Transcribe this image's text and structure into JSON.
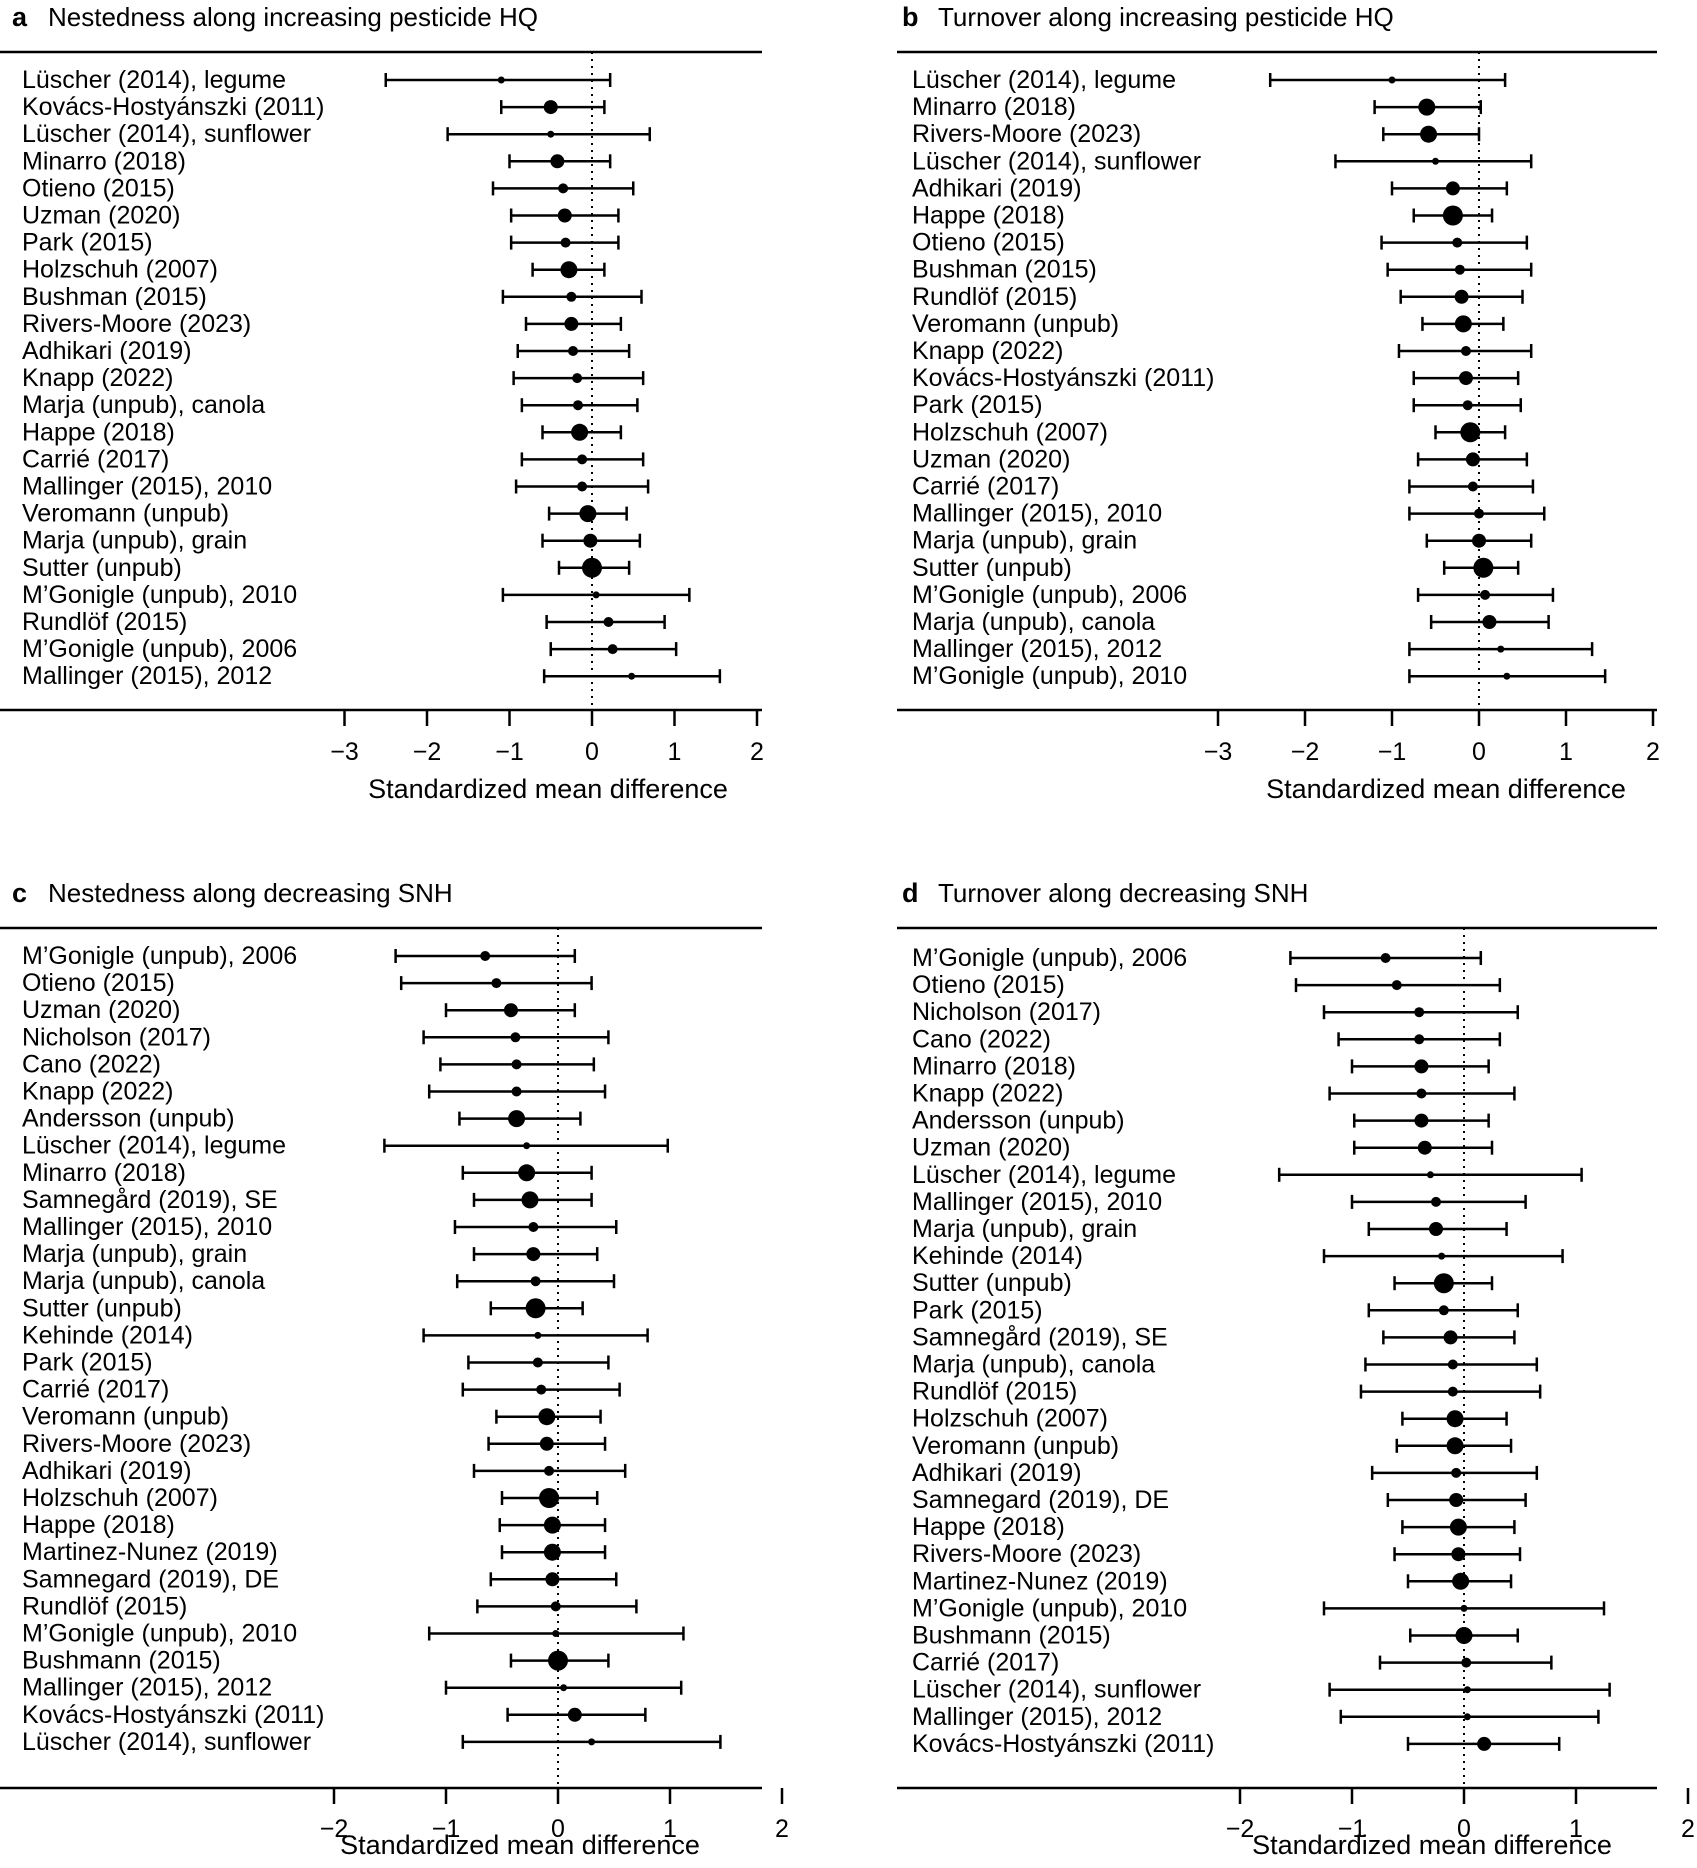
{
  "chart_data": [
    {
      "type": "forest",
      "panel": "a",
      "title": "Nestedness along increasing pesticide HQ",
      "xlabel": "Standardized mean difference",
      "xlim": [
        -3,
        2
      ],
      "ticks": [
        -3,
        -2,
        -1,
        0,
        1,
        2
      ],
      "tick_labels": [
        "−3",
        "−2",
        "−1",
        "0",
        "1",
        "2"
      ],
      "studies": [
        {
          "label": "Lüscher (2014), legume",
          "est": -1.1,
          "lo": -2.5,
          "hi": 0.22,
          "w": 1
        },
        {
          "label": "Kovács-Hostyánszki (2011)",
          "est": -0.5,
          "lo": -1.1,
          "hi": 0.15,
          "w": 3
        },
        {
          "label": "Lüscher (2014), sunflower",
          "est": -0.5,
          "lo": -1.75,
          "hi": 0.7,
          "w": 1
        },
        {
          "label": "Minarro (2018)",
          "est": -0.42,
          "lo": -1.0,
          "hi": 0.22,
          "w": 3
        },
        {
          "label": "Otieno (2015)",
          "est": -0.35,
          "lo": -1.2,
          "hi": 0.5,
          "w": 2
        },
        {
          "label": "Uzman (2020)",
          "est": -0.33,
          "lo": -0.98,
          "hi": 0.32,
          "w": 3
        },
        {
          "label": "Park (2015)",
          "est": -0.32,
          "lo": -0.98,
          "hi": 0.32,
          "w": 2
        },
        {
          "label": "Holzschuh (2007)",
          "est": -0.28,
          "lo": -0.72,
          "hi": 0.15,
          "w": 4
        },
        {
          "label": "Bushman (2015)",
          "est": -0.25,
          "lo": -1.08,
          "hi": 0.6,
          "w": 2
        },
        {
          "label": "Rivers-Moore (2023)",
          "est": -0.25,
          "lo": -0.8,
          "hi": 0.35,
          "w": 3
        },
        {
          "label": "Adhikari (2019)",
          "est": -0.23,
          "lo": -0.9,
          "hi": 0.45,
          "w": 2
        },
        {
          "label": "Knapp (2022)",
          "est": -0.18,
          "lo": -0.95,
          "hi": 0.62,
          "w": 2
        },
        {
          "label": "Marja (unpub), canola",
          "est": -0.17,
          "lo": -0.85,
          "hi": 0.55,
          "w": 2
        },
        {
          "label": "Happe (2018)",
          "est": -0.15,
          "lo": -0.6,
          "hi": 0.35,
          "w": 4
        },
        {
          "label": "Carrié (2017)",
          "est": -0.12,
          "lo": -0.85,
          "hi": 0.62,
          "w": 2
        },
        {
          "label": "Mallinger (2015), 2010",
          "est": -0.12,
          "lo": -0.92,
          "hi": 0.68,
          "w": 2
        },
        {
          "label": "Veromann (unpub)",
          "est": -0.05,
          "lo": -0.52,
          "hi": 0.42,
          "w": 4
        },
        {
          "label": "Marja (unpub), grain",
          "est": -0.02,
          "lo": -0.6,
          "hi": 0.58,
          "w": 3
        },
        {
          "label": "Sutter (unpub)",
          "est": 0.0,
          "lo": -0.4,
          "hi": 0.45,
          "w": 5
        },
        {
          "label": "M’Gonigle (unpub), 2010",
          "est": 0.05,
          "lo": -1.08,
          "hi": 1.18,
          "w": 1
        },
        {
          "label": "Rundlöf (2015)",
          "est": 0.2,
          "lo": -0.55,
          "hi": 0.88,
          "w": 2
        },
        {
          "label": "M’Gonigle (unpub), 2006",
          "est": 0.25,
          "lo": -0.5,
          "hi": 1.02,
          "w": 2
        },
        {
          "label": "Mallinger (2015), 2012",
          "est": 0.48,
          "lo": -0.58,
          "hi": 1.55,
          "w": 1
        }
      ]
    },
    {
      "type": "forest",
      "panel": "b",
      "title": "Turnover along increasing pesticide HQ",
      "xlabel": "Standardized mean difference",
      "xlim": [
        -3,
        2
      ],
      "ticks": [
        -3,
        -2,
        -1,
        0,
        1,
        2
      ],
      "tick_labels": [
        "−3",
        "−2",
        "−1",
        "0",
        "1",
        "2"
      ],
      "studies": [
        {
          "label": "Lüscher (2014), legume",
          "est": -1.0,
          "lo": -2.4,
          "hi": 0.3,
          "w": 1
        },
        {
          "label": "Minarro (2018)",
          "est": -0.6,
          "lo": -1.2,
          "hi": 0.02,
          "w": 4
        },
        {
          "label": "Rivers-Moore (2023)",
          "est": -0.58,
          "lo": -1.1,
          "hi": 0.0,
          "w": 4
        },
        {
          "label": "Lüscher (2014), sunflower",
          "est": -0.5,
          "lo": -1.65,
          "hi": 0.6,
          "w": 1
        },
        {
          "label": "Adhikari (2019)",
          "est": -0.3,
          "lo": -1.0,
          "hi": 0.32,
          "w": 3
        },
        {
          "label": "Happe (2018)",
          "est": -0.3,
          "lo": -0.75,
          "hi": 0.15,
          "w": 5
        },
        {
          "label": "Otieno (2015)",
          "est": -0.25,
          "lo": -1.12,
          "hi": 0.55,
          "w": 2
        },
        {
          "label": "Bushman (2015)",
          "est": -0.22,
          "lo": -1.05,
          "hi": 0.6,
          "w": 2
        },
        {
          "label": "Rundlöf (2015)",
          "est": -0.2,
          "lo": -0.9,
          "hi": 0.5,
          "w": 3
        },
        {
          "label": "Veromann (unpub)",
          "est": -0.18,
          "lo": -0.65,
          "hi": 0.28,
          "w": 4
        },
        {
          "label": "Knapp (2022)",
          "est": -0.15,
          "lo": -0.92,
          "hi": 0.6,
          "w": 2
        },
        {
          "label": "Kovács-Hostyánszki (2011)",
          "est": -0.15,
          "lo": -0.75,
          "hi": 0.45,
          "w": 3
        },
        {
          "label": "Park (2015)",
          "est": -0.13,
          "lo": -0.75,
          "hi": 0.48,
          "w": 2
        },
        {
          "label": "Holzschuh (2007)",
          "est": -0.1,
          "lo": -0.5,
          "hi": 0.3,
          "w": 5
        },
        {
          "label": "Uzman (2020)",
          "est": -0.07,
          "lo": -0.7,
          "hi": 0.55,
          "w": 3
        },
        {
          "label": "Carrié (2017)",
          "est": -0.07,
          "lo": -0.8,
          "hi": 0.62,
          "w": 2
        },
        {
          "label": "Mallinger (2015), 2010",
          "est": 0.0,
          "lo": -0.8,
          "hi": 0.75,
          "w": 2
        },
        {
          "label": "Marja (unpub), grain",
          "est": 0.0,
          "lo": -0.6,
          "hi": 0.6,
          "w": 3
        },
        {
          "label": "Sutter (unpub)",
          "est": 0.05,
          "lo": -0.4,
          "hi": 0.45,
          "w": 5
        },
        {
          "label": "M’Gonigle (unpub), 2006",
          "est": 0.07,
          "lo": -0.7,
          "hi": 0.85,
          "w": 2
        },
        {
          "label": "Marja (unpub), canola",
          "est": 0.12,
          "lo": -0.55,
          "hi": 0.8,
          "w": 3
        },
        {
          "label": "Mallinger (2015), 2012",
          "est": 0.25,
          "lo": -0.8,
          "hi": 1.3,
          "w": 1
        },
        {
          "label": "M’Gonigle (unpub), 2010",
          "est": 0.32,
          "lo": -0.8,
          "hi": 1.45,
          "w": 1
        }
      ]
    },
    {
      "type": "forest",
      "panel": "c",
      "title": "Nestedness along decreasing SNH",
      "xlabel": "Standardized mean difference",
      "xlim": [
        -2,
        2
      ],
      "ticks": [
        -2,
        -1,
        0,
        1,
        2
      ],
      "tick_labels": [
        "−2",
        "−1",
        "0",
        "1",
        "2"
      ],
      "studies": [
        {
          "label": "M’Gonigle (unpub), 2006",
          "est": -0.65,
          "lo": -1.45,
          "hi": 0.15,
          "w": 2
        },
        {
          "label": "Otieno (2015)",
          "est": -0.55,
          "lo": -1.4,
          "hi": 0.3,
          "w": 2
        },
        {
          "label": "Uzman (2020)",
          "est": -0.42,
          "lo": -1.0,
          "hi": 0.15,
          "w": 3
        },
        {
          "label": "Nicholson (2017)",
          "est": -0.38,
          "lo": -1.2,
          "hi": 0.45,
          "w": 2
        },
        {
          "label": "Cano (2022)",
          "est": -0.37,
          "lo": -1.05,
          "hi": 0.32,
          "w": 2
        },
        {
          "label": "Knapp (2022)",
          "est": -0.37,
          "lo": -1.15,
          "hi": 0.42,
          "w": 2
        },
        {
          "label": "Andersson (unpub)",
          "est": -0.37,
          "lo": -0.88,
          "hi": 0.2,
          "w": 4
        },
        {
          "label": "Lüscher (2014), legume",
          "est": -0.28,
          "lo": -1.55,
          "hi": 0.98,
          "w": 1
        },
        {
          "label": "Minarro (2018)",
          "est": -0.28,
          "lo": -0.85,
          "hi": 0.3,
          "w": 4
        },
        {
          "label": "Samnegård (2019), SE",
          "est": -0.25,
          "lo": -0.75,
          "hi": 0.3,
          "w": 4
        },
        {
          "label": "Mallinger (2015), 2010",
          "est": -0.22,
          "lo": -0.92,
          "hi": 0.52,
          "w": 2
        },
        {
          "label": "Marja (unpub), grain",
          "est": -0.22,
          "lo": -0.75,
          "hi": 0.35,
          "w": 3
        },
        {
          "label": "Marja (unpub), canola",
          "est": -0.2,
          "lo": -0.9,
          "hi": 0.5,
          "w": 2
        },
        {
          "label": "Sutter (unpub)",
          "est": -0.2,
          "lo": -0.6,
          "hi": 0.22,
          "w": 5
        },
        {
          "label": "Kehinde (2014)",
          "est": -0.18,
          "lo": -1.2,
          "hi": 0.8,
          "w": 1
        },
        {
          "label": "Park (2015)",
          "est": -0.18,
          "lo": -0.8,
          "hi": 0.45,
          "w": 2
        },
        {
          "label": "Carrié (2017)",
          "est": -0.15,
          "lo": -0.85,
          "hi": 0.55,
          "w": 2
        },
        {
          "label": "Veromann (unpub)",
          "est": -0.1,
          "lo": -0.55,
          "hi": 0.38,
          "w": 4
        },
        {
          "label": "Rivers-Moore (2023)",
          "est": -0.1,
          "lo": -0.62,
          "hi": 0.42,
          "w": 3
        },
        {
          "label": "Adhikari (2019)",
          "est": -0.08,
          "lo": -0.75,
          "hi": 0.6,
          "w": 2
        },
        {
          "label": "Holzschuh (2007)",
          "est": -0.08,
          "lo": -0.5,
          "hi": 0.35,
          "w": 5
        },
        {
          "label": "Happe (2018)",
          "est": -0.05,
          "lo": -0.52,
          "hi": 0.42,
          "w": 4
        },
        {
          "label": "Martinez-Nunez (2019)",
          "est": -0.05,
          "lo": -0.5,
          "hi": 0.42,
          "w": 4
        },
        {
          "label": "Samnegard (2019), DE",
          "est": -0.05,
          "lo": -0.6,
          "hi": 0.52,
          "w": 3
        },
        {
          "label": "Rundlöf (2015)",
          "est": -0.02,
          "lo": -0.72,
          "hi": 0.7,
          "w": 2
        },
        {
          "label": "M’Gonigle (unpub), 2010",
          "est": -0.02,
          "lo": -1.15,
          "hi": 1.12,
          "w": 1
        },
        {
          "label": "Bushmann (2015)",
          "est": 0.0,
          "lo": -0.42,
          "hi": 0.45,
          "w": 5
        },
        {
          "label": "Mallinger (2015), 2012",
          "est": 0.05,
          "lo": -1.0,
          "hi": 1.1,
          "w": 1
        },
        {
          "label": "Kovács-Hostyánszki (2011)",
          "est": 0.15,
          "lo": -0.45,
          "hi": 0.78,
          "w": 3
        },
        {
          "label": "Lüscher (2014), sunflower",
          "est": 0.3,
          "lo": -0.85,
          "hi": 1.45,
          "w": 1
        }
      ]
    },
    {
      "type": "forest",
      "panel": "d",
      "title": "Turnover along decreasing SNH",
      "xlabel": "Standardized mean difference",
      "xlim": [
        -2,
        2
      ],
      "ticks": [
        -2,
        -1,
        0,
        1,
        2
      ],
      "tick_labels": [
        "−2",
        "−1",
        "0",
        "1",
        "2"
      ],
      "studies": [
        {
          "label": "M’Gonigle (unpub), 2006",
          "est": -0.7,
          "lo": -1.55,
          "hi": 0.15,
          "w": 2
        },
        {
          "label": "Otieno (2015)",
          "est": -0.6,
          "lo": -1.5,
          "hi": 0.32,
          "w": 2
        },
        {
          "label": "Nicholson (2017)",
          "est": -0.4,
          "lo": -1.25,
          "hi": 0.48,
          "w": 2
        },
        {
          "label": "Cano (2022)",
          "est": -0.4,
          "lo": -1.12,
          "hi": 0.32,
          "w": 2
        },
        {
          "label": "Minarro (2018)",
          "est": -0.38,
          "lo": -1.0,
          "hi": 0.22,
          "w": 3
        },
        {
          "label": "Knapp (2022)",
          "est": -0.38,
          "lo": -1.2,
          "hi": 0.45,
          "w": 2
        },
        {
          "label": "Andersson (unpub)",
          "est": -0.38,
          "lo": -0.98,
          "hi": 0.22,
          "w": 3
        },
        {
          "label": "Uzman (2020)",
          "est": -0.35,
          "lo": -0.98,
          "hi": 0.25,
          "w": 3
        },
        {
          "label": "Lüscher (2014), legume",
          "est": -0.3,
          "lo": -1.65,
          "hi": 1.05,
          "w": 1
        },
        {
          "label": "Mallinger (2015), 2010",
          "est": -0.25,
          "lo": -1.0,
          "hi": 0.55,
          "w": 2
        },
        {
          "label": "Marja (unpub), grain",
          "est": -0.25,
          "lo": -0.85,
          "hi": 0.38,
          "w": 3
        },
        {
          "label": "Kehinde (2014)",
          "est": -0.2,
          "lo": -1.25,
          "hi": 0.88,
          "w": 1
        },
        {
          "label": "Sutter (unpub)",
          "est": -0.18,
          "lo": -0.62,
          "hi": 0.25,
          "w": 5
        },
        {
          "label": "Park (2015)",
          "est": -0.18,
          "lo": -0.85,
          "hi": 0.48,
          "w": 2
        },
        {
          "label": "Samnegård (2019), SE",
          "est": -0.12,
          "lo": -0.72,
          "hi": 0.45,
          "w": 3
        },
        {
          "label": "Marja (unpub), canola",
          "est": -0.1,
          "lo": -0.88,
          "hi": 0.65,
          "w": 2
        },
        {
          "label": "Rundlöf (2015)",
          "est": -0.1,
          "lo": -0.92,
          "hi": 0.68,
          "w": 2
        },
        {
          "label": "Holzschuh (2007)",
          "est": -0.08,
          "lo": -0.55,
          "hi": 0.38,
          "w": 4
        },
        {
          "label": "Veromann (unpub)",
          "est": -0.08,
          "lo": -0.6,
          "hi": 0.42,
          "w": 4
        },
        {
          "label": "Adhikari (2019)",
          "est": -0.07,
          "lo": -0.82,
          "hi": 0.65,
          "w": 2
        },
        {
          "label": "Samnegard (2019), DE",
          "est": -0.07,
          "lo": -0.68,
          "hi": 0.55,
          "w": 3
        },
        {
          "label": "Happe (2018)",
          "est": -0.05,
          "lo": -0.55,
          "hi": 0.45,
          "w": 4
        },
        {
          "label": "Rivers-Moore (2023)",
          "est": -0.05,
          "lo": -0.62,
          "hi": 0.5,
          "w": 3
        },
        {
          "label": "Martinez-Nunez (2019)",
          "est": -0.03,
          "lo": -0.5,
          "hi": 0.42,
          "w": 4
        },
        {
          "label": "M’Gonigle (unpub), 2010",
          "est": 0.0,
          "lo": -1.25,
          "hi": 1.25,
          "w": 1
        },
        {
          "label": "Bushmann (2015)",
          "est": 0.0,
          "lo": -0.48,
          "hi": 0.48,
          "w": 4
        },
        {
          "label": "Carrié (2017)",
          "est": 0.02,
          "lo": -0.75,
          "hi": 0.78,
          "w": 2
        },
        {
          "label": "Lüscher (2014), sunflower",
          "est": 0.03,
          "lo": -1.2,
          "hi": 1.3,
          "w": 1
        },
        {
          "label": "Mallinger (2015), 2012",
          "est": 0.03,
          "lo": -1.1,
          "hi": 1.2,
          "w": 1
        },
        {
          "label": "Kovács-Hostyánszki (2011)",
          "est": 0.18,
          "lo": -0.5,
          "hi": 0.85,
          "w": 3
        }
      ]
    }
  ]
}
